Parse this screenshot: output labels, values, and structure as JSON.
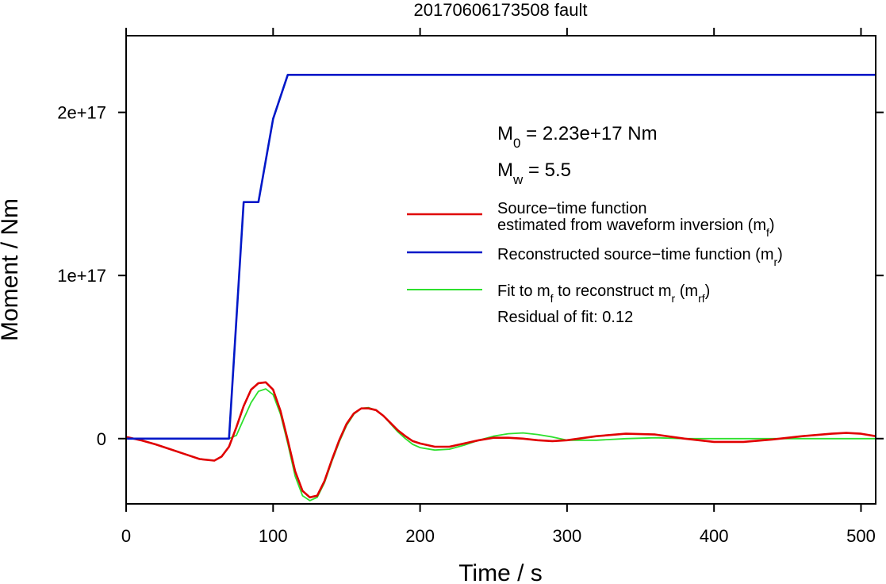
{
  "chart_data": {
    "type": "line",
    "title": "20170606173508 fault",
    "xlabel": "Time / s",
    "ylabel": "Moment / Nm",
    "xlim": [
      0,
      510
    ],
    "ylim": [
      -4e+16,
      2.47e+17
    ],
    "x_ticks": [
      0,
      100,
      200,
      300,
      400,
      500
    ],
    "x_tick_labels": [
      "0",
      "100",
      "200",
      "300",
      "400",
      "500"
    ],
    "y_ticks": [
      0,
      1e+17,
      2e+17
    ],
    "y_tick_labels": [
      "0",
      "1e+17",
      "2e+17"
    ],
    "grid": false,
    "legend_position": "right",
    "annotations": {
      "m0": {
        "main": "M",
        "sub": "0",
        "rest": " = 2.23e+17 Nm"
      },
      "mw": {
        "main": "M",
        "sub": "w",
        "rest": " = 5.5"
      },
      "residual": "Residual of fit: 0.12"
    },
    "legend": [
      {
        "series_index": 0,
        "color": "#e00000",
        "line1": "Source−time function",
        "line2_parts": [
          "estimated from waveform inversion (m",
          "f",
          ")"
        ]
      },
      {
        "series_index": 1,
        "color": "#0018c8",
        "line1_parts": [
          "Reconstructed source−time function (m",
          "r",
          ")"
        ]
      },
      {
        "series_index": 2,
        "color": "#2ee02e",
        "line1_parts": [
          "Fit to m",
          "f",
          " to reconstruct m",
          "r",
          " (m",
          "rf",
          ")"
        ]
      }
    ],
    "series": [
      {
        "color": "#e00000",
        "x": [
          0,
          10,
          20,
          30,
          40,
          50,
          60,
          65,
          70,
          75,
          80,
          85,
          90,
          95,
          100,
          105,
          110,
          115,
          120,
          125,
          130,
          135,
          140,
          145,
          150,
          155,
          160,
          165,
          170,
          175,
          180,
          185,
          190,
          195,
          200,
          210,
          220,
          230,
          240,
          250,
          260,
          270,
          280,
          290,
          300,
          320,
          340,
          360,
          380,
          400,
          420,
          440,
          460,
          480,
          490,
          500,
          510
        ],
        "values": [
          1000000000000000.0,
          -1000000000000000.0,
          -3500000000000000.0,
          -6500000000000000.0,
          -9500000000000000.0,
          -1.25e+16,
          -1.35e+16,
          -1.1e+16,
          -5000000000000000.0,
          7000000000000000.0,
          2e+16,
          3e+16,
          3.4e+16,
          3.45e+16,
          3e+16,
          1.7e+16,
          -1000000000000000.0,
          -2e+16,
          -3.2e+16,
          -3.6e+16,
          -3.5e+16,
          -2.6e+16,
          -1.3e+16,
          -1000000000000000.0,
          9000000000000000.0,
          1.55e+16,
          1.85e+16,
          1.85e+16,
          1.75e+16,
          1.4e+16,
          9500000000000000.0,
          5000000000000000.0,
          1500000000000000.0,
          -1500000000000000.0,
          -3000000000000000.0,
          -5000000000000000.0,
          -5000000000000000.0,
          -3000000000000000.0,
          -1000000000000000.0,
          500000000000000.0,
          500000000000000.0,
          0,
          -1000000000000000.0,
          -1500000000000000.0,
          -1000000000000000.0,
          1500000000000000.0,
          3000000000000000.0,
          2500000000000000.0,
          0,
          -2000000000000000.0,
          -2000000000000000.0,
          -500000000000000.0,
          1500000000000000.0,
          3000000000000000.0,
          3500000000000000.0,
          3000000000000000.0,
          1500000000000000.0
        ]
      },
      {
        "color": "#0018c8",
        "x": [
          0,
          70,
          80,
          90,
          100,
          110,
          510
        ],
        "values": [
          0,
          0,
          1.45e+17,
          1.45e+17,
          1.96e+17,
          2.23e+17,
          2.23e+17
        ]
      },
      {
        "color": "#2ee02e",
        "x": [
          0,
          10,
          20,
          30,
          40,
          50,
          60,
          65,
          70,
          75,
          80,
          85,
          90,
          95,
          100,
          105,
          110,
          115,
          120,
          125,
          130,
          135,
          140,
          145,
          150,
          155,
          160,
          165,
          170,
          175,
          180,
          185,
          190,
          195,
          200,
          210,
          220,
          230,
          240,
          250,
          260,
          270,
          280,
          290,
          300,
          320,
          340,
          360,
          380,
          400,
          420,
          440,
          460,
          480,
          500,
          510
        ],
        "values": [
          0,
          0,
          0,
          0,
          0,
          0,
          0,
          0,
          0,
          2000000000000000.0,
          1.2e+16,
          2.2e+16,
          2.9e+16,
          3.05e+16,
          2.7e+16,
          1.5e+16,
          -3000000000000000.0,
          -2.3e+16,
          -3.5e+16,
          -3.8e+16,
          -3.6e+16,
          -2.7e+16,
          -1.4e+16,
          -2000000000000000.0,
          8000000000000000.0,
          1.5e+16,
          1.85e+16,
          1.9e+16,
          1.75e+16,
          1.4e+16,
          9000000000000000.0,
          4000000000000000.0,
          0,
          -3500000000000000.0,
          -5500000000000000.0,
          -7000000000000000.0,
          -6500000000000000.0,
          -4000000000000000.0,
          -1000000000000000.0,
          1500000000000000.0,
          3000000000000000.0,
          3500000000000000.0,
          2500000000000000.0,
          1000000000000000.0,
          -1000000000000000.0,
          -1000000000000000.0,
          0,
          500000000000000.0,
          0,
          0,
          0,
          0,
          0,
          0,
          0,
          0
        ]
      }
    ]
  }
}
